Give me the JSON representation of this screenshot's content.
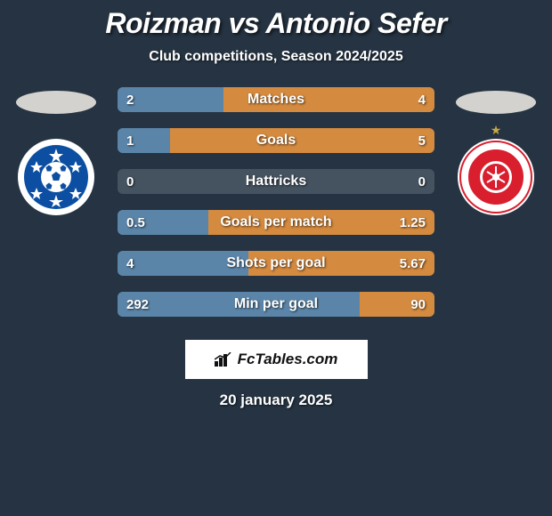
{
  "background_color": "#253342",
  "text_color": "#ffffff",
  "title": "Roizman vs Antonio Sefer",
  "subtitle": "Club competitions, Season 2024/2025",
  "date": "20 january 2025",
  "watermark": "FcTables.com",
  "oval_color": "#d4d2ce",
  "left_badge": {
    "outer": "#ffffff",
    "inner": "#0b4ea2",
    "ball": "#ffffff"
  },
  "right_badge": {
    "outer": "#ffffff",
    "inner": "#d91e2e",
    "star": "#c9a942"
  },
  "bar_track_color": "#455260",
  "bar_left_color": "#5b85a8",
  "bar_right_color": "#d48a3f",
  "rows": [
    {
      "label": "Matches",
      "left_val": "2",
      "right_val": "4",
      "left_pct": 33.3,
      "right_pct": 66.7
    },
    {
      "label": "Goals",
      "left_val": "1",
      "right_val": "5",
      "left_pct": 16.7,
      "right_pct": 83.3
    },
    {
      "label": "Hattricks",
      "left_val": "0",
      "right_val": "0",
      "left_pct": 0,
      "right_pct": 0
    },
    {
      "label": "Goals per match",
      "left_val": "0.5",
      "right_val": "1.25",
      "left_pct": 28.6,
      "right_pct": 71.4
    },
    {
      "label": "Shots per goal",
      "left_val": "4",
      "right_val": "5.67",
      "left_pct": 41.4,
      "right_pct": 58.6
    },
    {
      "label": "Min per goal",
      "left_val": "292",
      "right_val": "90",
      "left_pct": 76.4,
      "right_pct": 23.6
    }
  ]
}
